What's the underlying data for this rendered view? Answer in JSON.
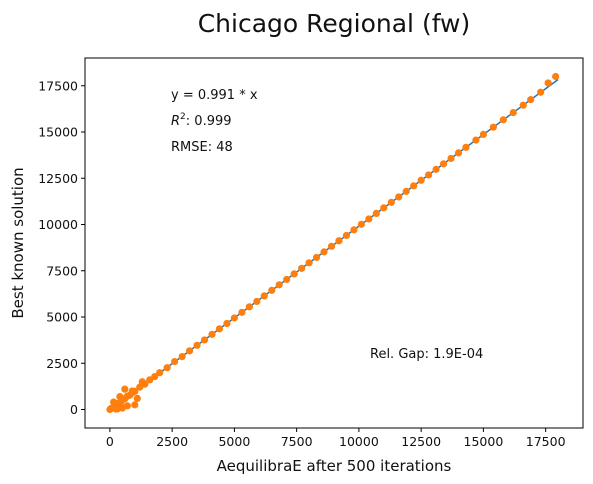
{
  "chart_data": {
    "type": "scatter",
    "title": "Chicago Regional (fw)",
    "xlabel": "AequilibraE after 500 iterations",
    "ylabel": "Best known solution",
    "xlim": [
      -1000,
      19000
    ],
    "ylim": [
      -1000,
      19000
    ],
    "x_ticks": [
      0,
      2500,
      5000,
      7500,
      10000,
      12500,
      15000,
      17500
    ],
    "y_ticks": [
      0,
      2500,
      5000,
      7500,
      10000,
      12500,
      15000,
      17500
    ],
    "annotations": {
      "equation": "y = 0.991 * x",
      "r2_label": "R",
      "r2_exp": "2",
      "r2_value": ":  0.999",
      "rmse": "RMSE: 48",
      "rel_gap": "Rel. Gap: 1.9E-04"
    },
    "series": [
      {
        "type": "scatter",
        "color": "#ff7f0e",
        "x": [
          0,
          50,
          120,
          200,
          300,
          380,
          450,
          520,
          600,
          700,
          800,
          900,
          1000,
          1200,
          1400,
          1600,
          1800,
          2000,
          2300,
          2600,
          2900,
          3200,
          3500,
          3800,
          4100,
          4400,
          4700,
          5000,
          5300,
          5600,
          5900,
          6200,
          6500,
          6800,
          7100,
          7400,
          7700,
          8000,
          8300,
          8600,
          8900,
          9200,
          9500,
          9800,
          10100,
          10400,
          10700,
          11000,
          11300,
          11600,
          11900,
          12200,
          12500,
          12800,
          13100,
          13400,
          13700,
          14000,
          14300,
          14700,
          15000,
          15400,
          15800,
          16200,
          16600,
          16900,
          17300,
          17600,
          17900,
          300,
          500,
          700,
          900,
          1100,
          1300,
          150,
          250,
          600,
          400,
          1000
        ],
        "y": [
          0,
          60,
          100,
          180,
          320,
          350,
          420,
          560,
          580,
          720,
          770,
          910,
          980,
          1210,
          1370,
          1600,
          1780,
          1990,
          2260,
          2590,
          2860,
          3170,
          3470,
          3760,
          4060,
          4360,
          4650,
          4950,
          5250,
          5550,
          5840,
          6140,
          6440,
          6740,
          7030,
          7330,
          7630,
          7930,
          8220,
          8520,
          8820,
          9120,
          9410,
          9710,
          10010,
          10300,
          10600,
          10900,
          11200,
          11490,
          11790,
          12090,
          12390,
          12680,
          12980,
          13280,
          13570,
          13870,
          14170,
          14560,
          14870,
          15260,
          15660,
          16050,
          16450,
          16750,
          17150,
          17650,
          18000,
          30,
          80,
          200,
          1000,
          600,
          1500,
          400,
          20,
          1100,
          700,
          250
        ]
      },
      {
        "type": "line",
        "color": "#1f77b4",
        "x": [
          0,
          18000
        ],
        "y": [
          0,
          17838
        ]
      }
    ]
  }
}
